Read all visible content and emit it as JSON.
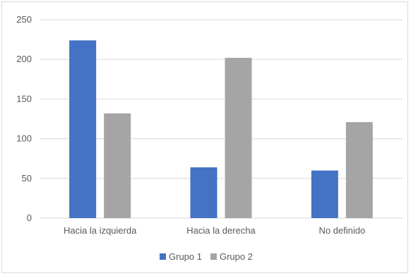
{
  "chart_data": {
    "type": "bar",
    "categories": [
      "Hacia la izquierda",
      "Hacia la derecha",
      "No definido"
    ],
    "series": [
      {
        "name": "Grupo 1",
        "color": "#4472c4",
        "values": [
          224,
          64,
          60
        ]
      },
      {
        "name": "Grupo 2",
        "color": "#a5a5a5",
        "values": [
          132,
          202,
          121
        ]
      }
    ],
    "ylim": [
      0,
      250
    ],
    "yticks": [
      0,
      50,
      100,
      150,
      200,
      250
    ],
    "grid": true,
    "legend_position": "bottom",
    "gridline_color": "#d9d9d9",
    "text_color": "#595959"
  }
}
